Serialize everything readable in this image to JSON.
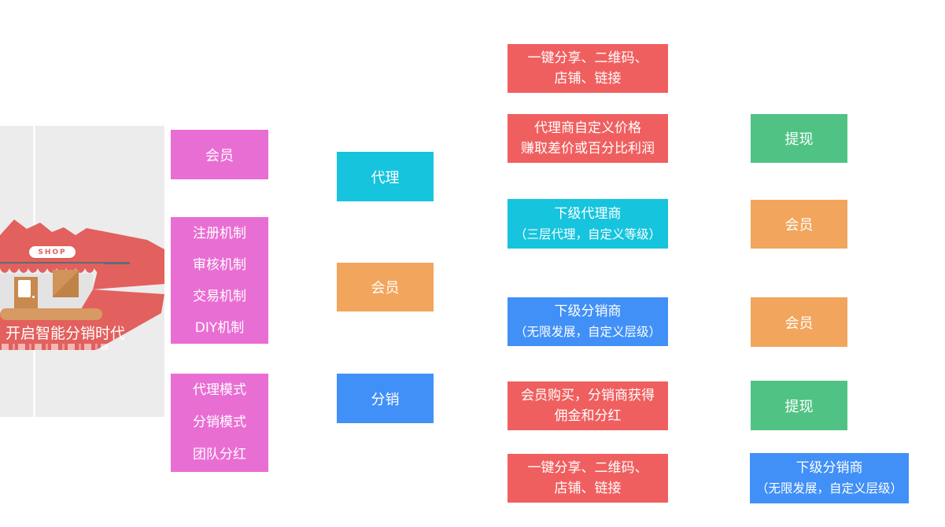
{
  "illustration": {
    "shop_badge": "SHOP",
    "tagline": "开启智能分销时代"
  },
  "colors": {
    "pink": "#e96ed3",
    "cyan": "#16c4de",
    "orange": "#f2a55c",
    "blue": "#4190f7",
    "red": "#f05f5f",
    "green": "#50c384",
    "illustration_red": "#e2605d"
  },
  "nodes": [
    {
      "id": "member-pink",
      "color": "pink",
      "lines": [
        "会员"
      ]
    },
    {
      "id": "mechanisms",
      "color": "pink",
      "lines": [
        "注册机制",
        "审核机制",
        "交易机制",
        "DIY机制"
      ]
    },
    {
      "id": "modes",
      "color": "pink",
      "lines": [
        "代理模式",
        "分销模式",
        "团队分红"
      ]
    },
    {
      "id": "agent",
      "color": "cyan",
      "lines": [
        "代理"
      ]
    },
    {
      "id": "member-mid",
      "color": "orange",
      "lines": [
        "会员"
      ]
    },
    {
      "id": "distribution",
      "color": "blue",
      "lines": [
        "分销"
      ]
    },
    {
      "id": "share-top",
      "color": "red",
      "lines": [
        "一键分享、二维码、",
        "店铺、链接"
      ]
    },
    {
      "id": "agent-pricing",
      "color": "red",
      "lines": [
        "代理商自定义价格",
        "赚取差价或百分比利润"
      ]
    },
    {
      "id": "sub-agents",
      "color": "cyan",
      "lines": [
        "下级代理商",
        "（三层代理，自定义等级）"
      ]
    },
    {
      "id": "sub-distributors",
      "color": "blue",
      "lines": [
        "下级分销商",
        "（无限发展，自定义层级）"
      ]
    },
    {
      "id": "member-purchase",
      "color": "red",
      "lines": [
        "会员购买，分销商获得",
        "佣金和分红"
      ]
    },
    {
      "id": "share-bottom",
      "color": "red",
      "lines": [
        "一键分享、二维码、",
        "店铺、链接"
      ]
    },
    {
      "id": "withdraw-1",
      "color": "green",
      "lines": [
        "提现"
      ]
    },
    {
      "id": "member-right-1",
      "color": "orange",
      "lines": [
        "会员"
      ]
    },
    {
      "id": "member-right-2",
      "color": "orange",
      "lines": [
        "会员"
      ]
    },
    {
      "id": "withdraw-2",
      "color": "green",
      "lines": [
        "提现"
      ]
    },
    {
      "id": "sub-distributors-right",
      "color": "blue",
      "lines": [
        "下级分销商",
        "（无限发展，自定义层级）"
      ]
    }
  ]
}
